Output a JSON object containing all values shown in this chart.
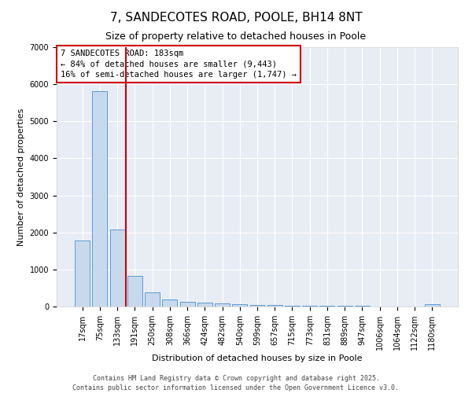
{
  "title": "7, SANDECOTES ROAD, POOLE, BH14 8NT",
  "subtitle": "Size of property relative to detached houses in Poole",
  "xlabel": "Distribution of detached houses by size in Poole",
  "ylabel": "Number of detached properties",
  "categories": [
    "17sqm",
    "75sqm",
    "133sqm",
    "191sqm",
    "250sqm",
    "308sqm",
    "366sqm",
    "424sqm",
    "482sqm",
    "540sqm",
    "599sqm",
    "657sqm",
    "715sqm",
    "773sqm",
    "831sqm",
    "889sqm",
    "947sqm",
    "1006sqm",
    "1064sqm",
    "1122sqm",
    "1180sqm"
  ],
  "values": [
    1780,
    5820,
    2080,
    820,
    385,
    200,
    130,
    100,
    75,
    55,
    45,
    35,
    28,
    22,
    18,
    15,
    12,
    10,
    8,
    7,
    60
  ],
  "bar_color": "#c8d9ee",
  "bar_edgecolor": "#5b9bd5",
  "red_line_x": 2.5,
  "annotation_text": "7 SANDECOTES ROAD: 183sqm\n← 84% of detached houses are smaller (9,443)\n16% of semi-detached houses are larger (1,747) →",
  "annotation_box_facecolor": "#ffffff",
  "annotation_box_edgecolor": "#cc0000",
  "red_line_color": "#cc0000",
  "ylim": [
    0,
    7000
  ],
  "yticks": [
    0,
    1000,
    2000,
    3000,
    4000,
    5000,
    6000,
    7000
  ],
  "fig_facecolor": "#ffffff",
  "plot_facecolor": "#e8edf5",
  "grid_color": "#ffffff",
  "footer_line1": "Contains HM Land Registry data © Crown copyright and database right 2025.",
  "footer_line2": "Contains public sector information licensed under the Open Government Licence v3.0.",
  "title_fontsize": 11,
  "subtitle_fontsize": 9,
  "axis_label_fontsize": 8,
  "tick_fontsize": 7,
  "annotation_fontsize": 7.5
}
